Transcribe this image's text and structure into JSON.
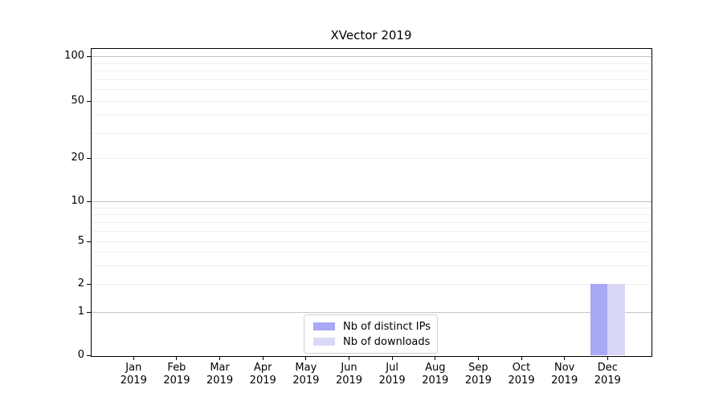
{
  "chart_data": {
    "type": "bar",
    "title": "XVector 2019",
    "categories": [
      "Jan 2019",
      "Feb 2019",
      "Mar 2019",
      "Apr 2019",
      "May 2019",
      "Jun 2019",
      "Jul 2019",
      "Aug 2019",
      "Sep 2019",
      "Oct 2019",
      "Nov 2019",
      "Dec 2019"
    ],
    "series": [
      {
        "name": "Nb of distinct IPs",
        "color": "#a8a8f6",
        "values": [
          0,
          0,
          0,
          0,
          0,
          0,
          0,
          0,
          0,
          0,
          0,
          2
        ]
      },
      {
        "name": "Nb of downloads",
        "color": "#d9d9f7",
        "values": [
          0,
          0,
          0,
          0,
          0,
          0,
          0,
          0,
          0,
          0,
          0,
          2
        ]
      }
    ],
    "xlabel": "",
    "ylabel": "",
    "yscale": "symlog",
    "ylim": [
      0,
      100
    ],
    "yticks": [
      0,
      1,
      2,
      5,
      10,
      20,
      50,
      100
    ],
    "grid": "both",
    "legend_position": "lower center",
    "colors": {
      "major_grid": "#c3c3c3",
      "minor_grid": "#eeeeee",
      "axis": "#000000",
      "background": "#ffffff"
    }
  }
}
